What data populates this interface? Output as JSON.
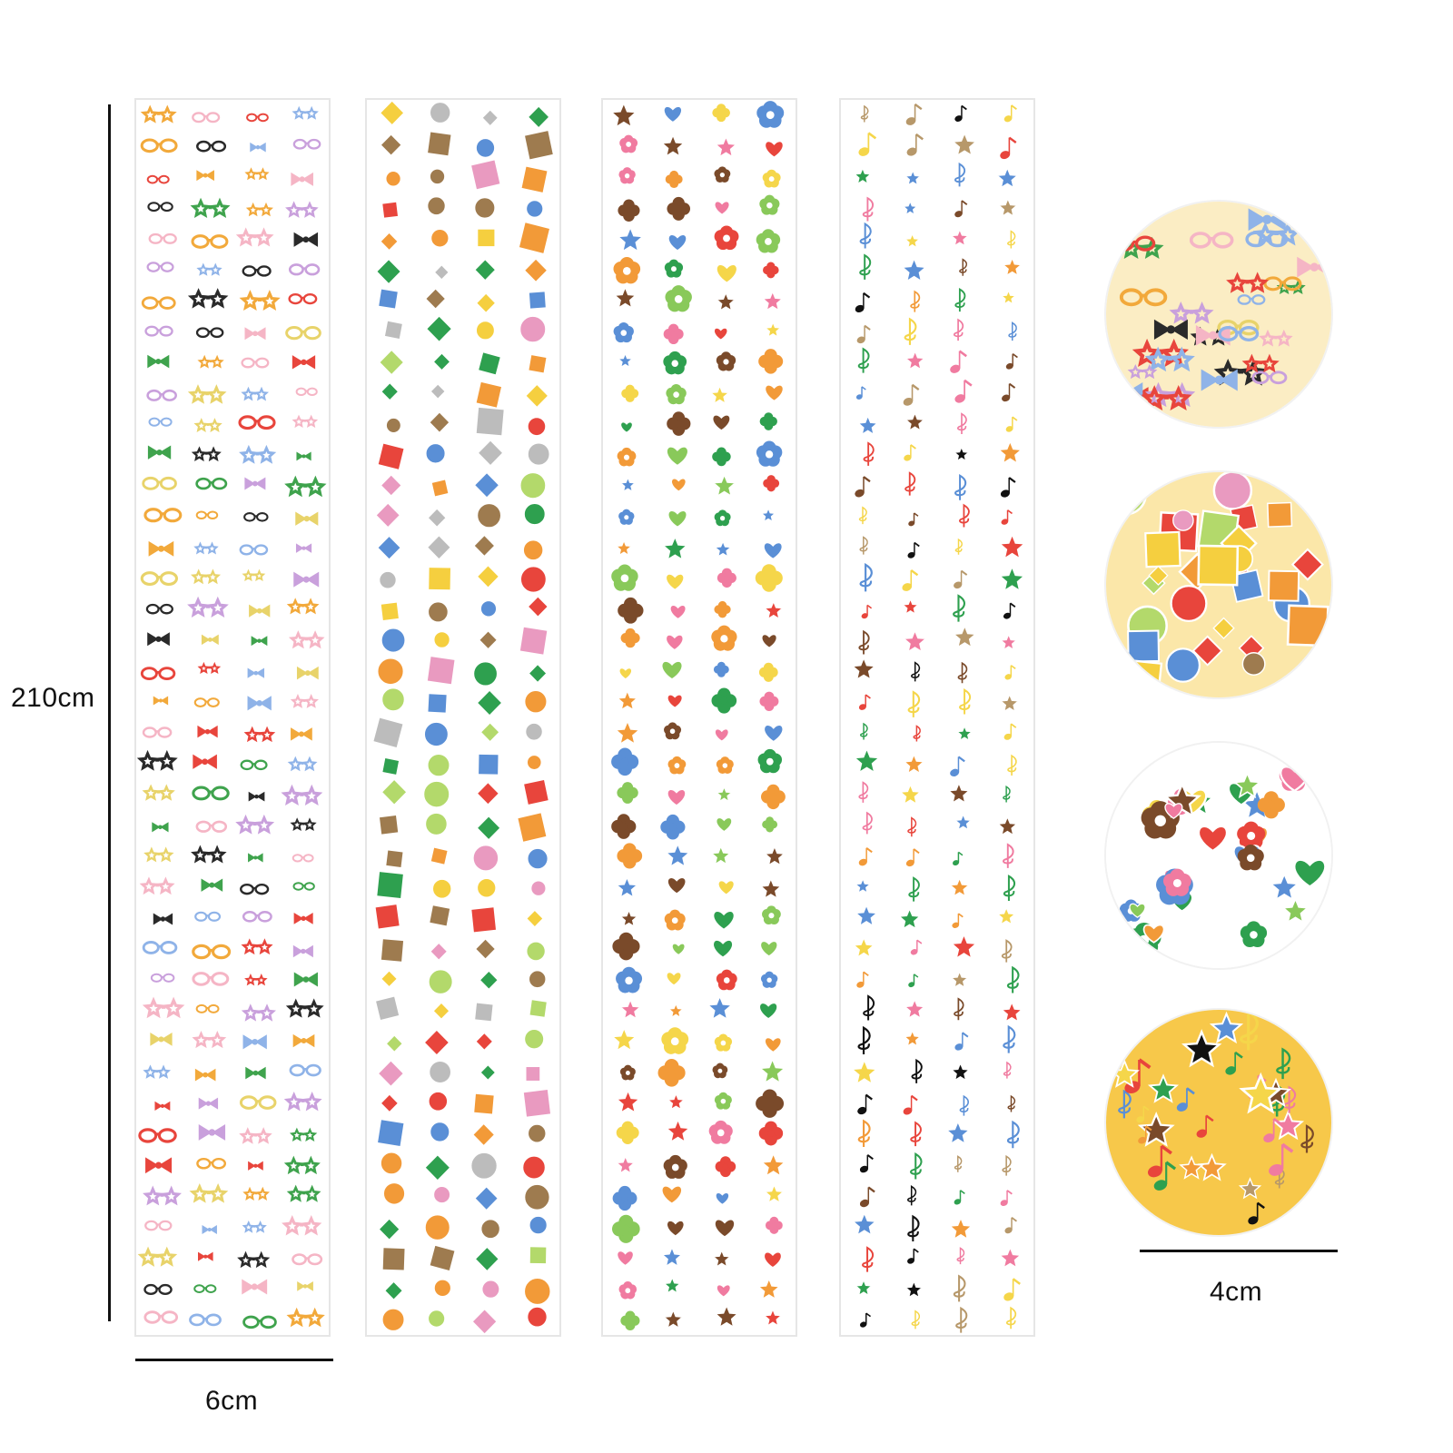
{
  "dimensions": {
    "strip_length_label": "210cm",
    "strip_width_label": "6cm",
    "swatch_width_label": "4cm"
  },
  "strips": [
    {
      "theme": "glasses-and-bows",
      "motifs": [
        "glasses-icon",
        "bow-icon",
        "star-glasses-icon"
      ],
      "palette": [
        "#e8453c",
        "#2a2a2a",
        "#3fa34d",
        "#f2a93b",
        "#8fb3e8",
        "#c9a0dc",
        "#e8d36a",
        "#f5b5c5"
      ],
      "swatch_bg": "#fbedc4"
    },
    {
      "theme": "dots-and-squares",
      "motifs": [
        "circle-icon",
        "square-icon",
        "diamond-icon"
      ],
      "palette": [
        "#e8453c",
        "#f29a38",
        "#2ea04f",
        "#5a8fd6",
        "#9e7b4f",
        "#f5cf3f",
        "#b3d96b",
        "#e99ac0",
        "#bcbcbc"
      ],
      "swatch_bg": "#fbe7a9"
    },
    {
      "theme": "clovers-and-hearts",
      "motifs": [
        "clover-icon",
        "heart-icon",
        "flower-icon",
        "star-icon"
      ],
      "palette": [
        "#2ea04f",
        "#89c95a",
        "#e8453c",
        "#f29a38",
        "#f07ba0",
        "#7a4a2a",
        "#f5d64a",
        "#5a8fd6"
      ],
      "swatch_bg": "#ffffff"
    },
    {
      "theme": "stars-and-music-notes",
      "motifs": [
        "star-icon",
        "music-note-icon",
        "treble-clef-icon"
      ],
      "palette": [
        "#e8453c",
        "#f29a38",
        "#2ea04f",
        "#5a8fd6",
        "#f07ba0",
        "#7a4a2a",
        "#f5d64a",
        "#111111",
        "#b7986a"
      ],
      "swatch_bg": "#f7c84a"
    }
  ]
}
